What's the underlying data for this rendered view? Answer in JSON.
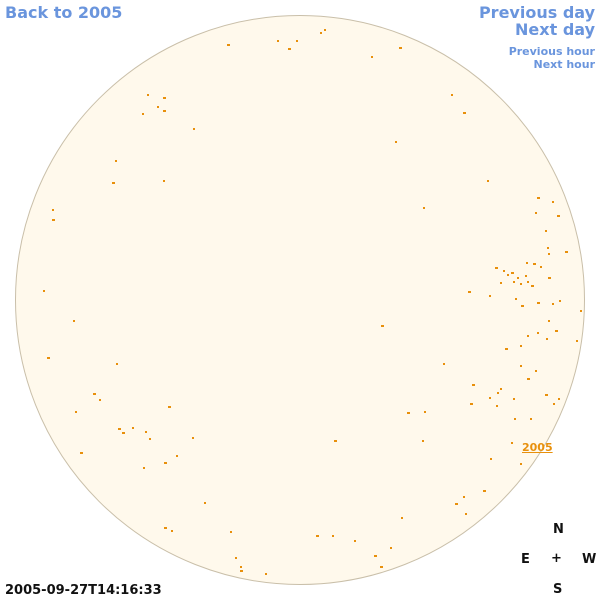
{
  "nav": {
    "back_label": "Back to 2005",
    "previous_day": "Previous day",
    "next_day": "Next day",
    "previous_hour": "Previous hour",
    "next_hour": "Next hour"
  },
  "sun": {
    "year_label": "2005",
    "disk_color": "#fff9ec",
    "mark_color": "#e8900c"
  },
  "compass": {
    "north": "N",
    "east": "E",
    "center": "+",
    "west": "W",
    "south": "S"
  },
  "timestamp": "2005-09-27T14:16:33"
}
